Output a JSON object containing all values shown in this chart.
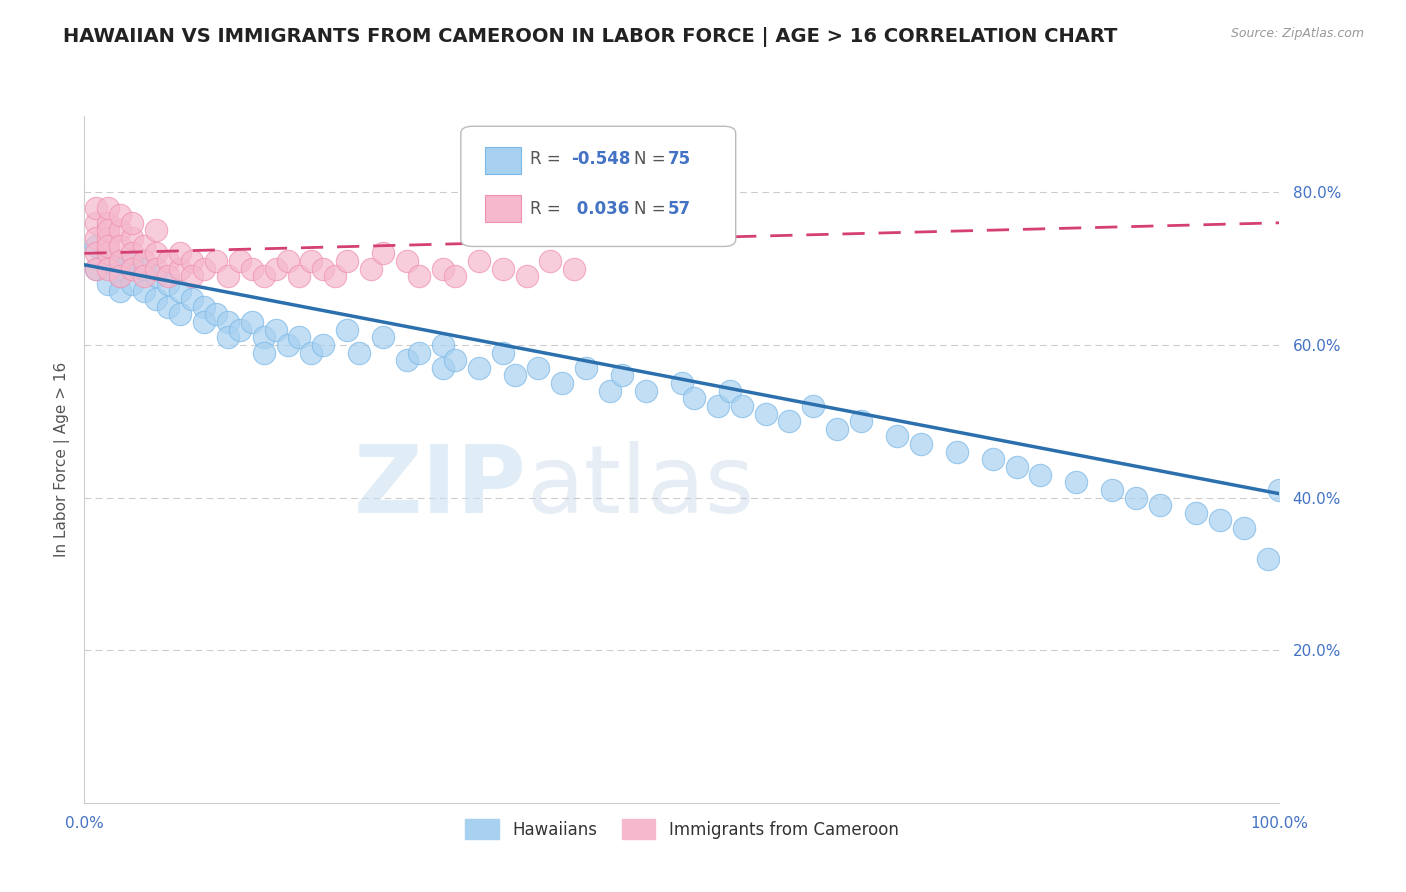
{
  "title": "HAWAIIAN VS IMMIGRANTS FROM CAMEROON IN LABOR FORCE | AGE > 16 CORRELATION CHART",
  "source_text": "Source: ZipAtlas.com",
  "ylabel": "In Labor Force | Age > 16",
  "xlim": [
    0.0,
    1.0
  ],
  "ylim": [
    0.0,
    0.9
  ],
  "xtick_vals": [
    0.0,
    0.25,
    0.5,
    0.75,
    1.0
  ],
  "xtick_labels": [
    "0.0%",
    "",
    "",
    "",
    "100.0%"
  ],
  "ytick_vals": [
    0.0,
    0.2,
    0.4,
    0.6,
    0.8
  ],
  "ytick_labels": [
    "",
    "20.0%",
    "40.0%",
    "60.0%",
    "80.0%"
  ],
  "blue_color": "#a8d1f0",
  "blue_edge_color": "#7ab8e8",
  "pink_color": "#f5b8cc",
  "pink_edge_color": "#f090b0",
  "blue_line_color": "#2c6fad",
  "pink_line_color": "#d44070",
  "grid_color": "#cccccc",
  "title_color": "#222222",
  "tick_color": "#4472c4",
  "background_color": "#ffffff",
  "legend_label_blue": "Hawaiians",
  "legend_label_pink": "Immigrants from Cameroon",
  "watermark_zip": "ZIP",
  "watermark_atlas": "atlas",
  "blue_scatter_x": [
    0.01,
    0.01,
    0.02,
    0.02,
    0.02,
    0.03,
    0.03,
    0.03,
    0.04,
    0.04,
    0.05,
    0.05,
    0.06,
    0.06,
    0.07,
    0.07,
    0.08,
    0.08,
    0.09,
    0.1,
    0.1,
    0.11,
    0.12,
    0.12,
    0.13,
    0.14,
    0.15,
    0.15,
    0.16,
    0.17,
    0.18,
    0.19,
    0.2,
    0.22,
    0.23,
    0.25,
    0.27,
    0.28,
    0.3,
    0.3,
    0.31,
    0.33,
    0.35,
    0.36,
    0.38,
    0.4,
    0.42,
    0.44,
    0.45,
    0.47,
    0.5,
    0.51,
    0.53,
    0.54,
    0.55,
    0.57,
    0.59,
    0.61,
    0.63,
    0.65,
    0.68,
    0.7,
    0.73,
    0.76,
    0.78,
    0.8,
    0.83,
    0.86,
    0.88,
    0.9,
    0.93,
    0.95,
    0.97,
    0.99,
    1.0
  ],
  "blue_scatter_y": [
    0.7,
    0.73,
    0.71,
    0.68,
    0.72,
    0.7,
    0.69,
    0.67,
    0.71,
    0.68,
    0.7,
    0.67,
    0.69,
    0.66,
    0.68,
    0.65,
    0.67,
    0.64,
    0.66,
    0.65,
    0.63,
    0.64,
    0.63,
    0.61,
    0.62,
    0.63,
    0.61,
    0.59,
    0.62,
    0.6,
    0.61,
    0.59,
    0.6,
    0.62,
    0.59,
    0.61,
    0.58,
    0.59,
    0.57,
    0.6,
    0.58,
    0.57,
    0.59,
    0.56,
    0.57,
    0.55,
    0.57,
    0.54,
    0.56,
    0.54,
    0.55,
    0.53,
    0.52,
    0.54,
    0.52,
    0.51,
    0.5,
    0.52,
    0.49,
    0.5,
    0.48,
    0.47,
    0.46,
    0.45,
    0.44,
    0.43,
    0.42,
    0.41,
    0.4,
    0.39,
    0.38,
    0.37,
    0.36,
    0.32,
    0.41
  ],
  "pink_scatter_x": [
    0.01,
    0.01,
    0.01,
    0.01,
    0.01,
    0.02,
    0.02,
    0.02,
    0.02,
    0.02,
    0.02,
    0.02,
    0.03,
    0.03,
    0.03,
    0.03,
    0.03,
    0.04,
    0.04,
    0.04,
    0.04,
    0.05,
    0.05,
    0.05,
    0.06,
    0.06,
    0.06,
    0.07,
    0.07,
    0.08,
    0.08,
    0.09,
    0.09,
    0.1,
    0.11,
    0.12,
    0.13,
    0.14,
    0.15,
    0.16,
    0.17,
    0.18,
    0.19,
    0.2,
    0.21,
    0.22,
    0.24,
    0.25,
    0.27,
    0.28,
    0.3,
    0.31,
    0.33,
    0.35,
    0.37,
    0.39,
    0.41
  ],
  "pink_scatter_y": [
    0.76,
    0.74,
    0.72,
    0.78,
    0.7,
    0.76,
    0.74,
    0.72,
    0.78,
    0.75,
    0.7,
    0.73,
    0.75,
    0.73,
    0.71,
    0.77,
    0.69,
    0.74,
    0.72,
    0.7,
    0.76,
    0.73,
    0.71,
    0.69,
    0.72,
    0.7,
    0.75,
    0.71,
    0.69,
    0.7,
    0.72,
    0.71,
    0.69,
    0.7,
    0.71,
    0.69,
    0.71,
    0.7,
    0.69,
    0.7,
    0.71,
    0.69,
    0.71,
    0.7,
    0.69,
    0.71,
    0.7,
    0.72,
    0.71,
    0.69,
    0.7,
    0.69,
    0.71,
    0.7,
    0.69,
    0.71,
    0.7
  ],
  "blue_trend_x0": 0.0,
  "blue_trend_y0": 0.705,
  "blue_trend_x1": 1.0,
  "blue_trend_y1": 0.405,
  "pink_trend_x0": 0.0,
  "pink_trend_y0": 0.72,
  "pink_trend_x1": 1.0,
  "pink_trend_y1": 0.76
}
